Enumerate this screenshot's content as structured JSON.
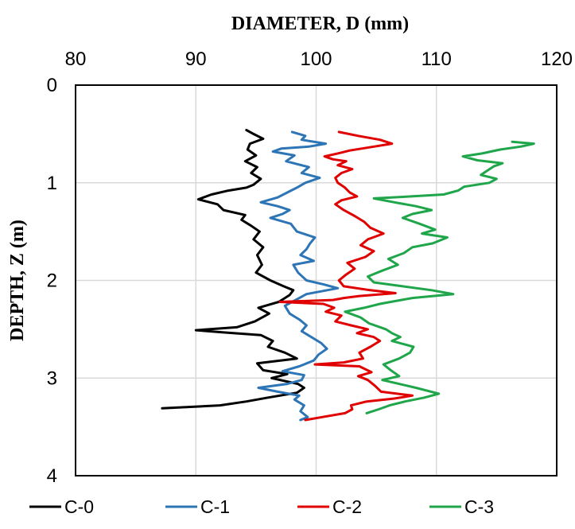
{
  "chart_data": {
    "type": "line",
    "xlabel": "DIAMETER, D (mm)",
    "ylabel": "DEPTH, Z (m)",
    "xlim": [
      80,
      120
    ],
    "ylim": [
      0,
      4
    ],
    "y_inverted": true,
    "x_axis_position": "top",
    "x_ticks": [
      "80",
      "90",
      "100",
      "110",
      "120"
    ],
    "y_ticks": [
      "0",
      "1",
      "2",
      "3",
      "4"
    ],
    "grid": true,
    "legend_position": "bottom",
    "series": [
      {
        "name": "C-0",
        "color": "#000000",
        "points": [
          [
            94.2,
            0.46
          ],
          [
            94.8,
            0.5
          ],
          [
            95.6,
            0.55
          ],
          [
            94.5,
            0.6
          ],
          [
            94.3,
            0.66
          ],
          [
            95.0,
            0.72
          ],
          [
            94.1,
            0.78
          ],
          [
            95.1,
            0.84
          ],
          [
            94.6,
            0.9
          ],
          [
            95.4,
            0.96
          ],
          [
            94.8,
            1.02
          ],
          [
            94.2,
            1.05
          ],
          [
            92.7,
            1.08
          ],
          [
            91.3,
            1.12
          ],
          [
            90.2,
            1.17
          ],
          [
            91.8,
            1.22
          ],
          [
            92.3,
            1.28
          ],
          [
            94.1,
            1.33
          ],
          [
            93.8,
            1.38
          ],
          [
            94.6,
            1.44
          ],
          [
            95.3,
            1.5
          ],
          [
            94.8,
            1.58
          ],
          [
            95.6,
            1.66
          ],
          [
            95.1,
            1.74
          ],
          [
            95.5,
            1.84
          ],
          [
            95.0,
            1.92
          ],
          [
            96.2,
            2.0
          ],
          [
            97.3,
            2.06
          ],
          [
            98.1,
            2.1
          ],
          [
            97.8,
            2.15
          ],
          [
            96.9,
            2.22
          ],
          [
            95.2,
            2.28
          ],
          [
            96.1,
            2.34
          ],
          [
            94.9,
            2.42
          ],
          [
            93.4,
            2.48
          ],
          [
            90.0,
            2.51
          ],
          [
            92.1,
            2.53
          ],
          [
            95.4,
            2.56
          ],
          [
            96.4,
            2.62
          ],
          [
            96.0,
            2.68
          ],
          [
            97.4,
            2.74
          ],
          [
            98.4,
            2.8
          ],
          [
            95.1,
            2.85
          ],
          [
            95.6,
            2.92
          ],
          [
            97.6,
            2.96
          ],
          [
            96.3,
            3.0
          ],
          [
            98.5,
            3.06
          ],
          [
            99.0,
            3.1
          ],
          [
            98.4,
            3.15
          ],
          [
            96.0,
            3.2
          ],
          [
            94.2,
            3.24
          ],
          [
            92.0,
            3.28
          ],
          [
            87.2,
            3.31
          ]
        ]
      },
      {
        "name": "C-1",
        "color": "#2E75B6",
        "points": [
          [
            98.0,
            0.48
          ],
          [
            99.1,
            0.52
          ],
          [
            98.8,
            0.56
          ],
          [
            100.8,
            0.6
          ],
          [
            99.4,
            0.63
          ],
          [
            97.1,
            0.65
          ],
          [
            96.4,
            0.68
          ],
          [
            98.2,
            0.72
          ],
          [
            97.5,
            0.78
          ],
          [
            99.4,
            0.84
          ],
          [
            98.8,
            0.9
          ],
          [
            100.3,
            0.95
          ],
          [
            99.1,
            1.0
          ],
          [
            98.4,
            1.05
          ],
          [
            97.6,
            1.1
          ],
          [
            96.8,
            1.15
          ],
          [
            95.4,
            1.2
          ],
          [
            96.8,
            1.24
          ],
          [
            97.8,
            1.28
          ],
          [
            97.2,
            1.32
          ],
          [
            96.2,
            1.36
          ],
          [
            97.9,
            1.42
          ],
          [
            98.4,
            1.5
          ],
          [
            99.9,
            1.56
          ],
          [
            99.5,
            1.62
          ],
          [
            99.2,
            1.68
          ],
          [
            98.7,
            1.74
          ],
          [
            99.8,
            1.8
          ],
          [
            98.1,
            1.84
          ],
          [
            98.5,
            1.92
          ],
          [
            99.2,
            2.0
          ],
          [
            100.6,
            2.04
          ],
          [
            101.8,
            2.08
          ],
          [
            99.2,
            2.14
          ],
          [
            98.3,
            2.2
          ],
          [
            97.4,
            2.26
          ],
          [
            97.8,
            2.34
          ],
          [
            98.6,
            2.4
          ],
          [
            99.2,
            2.46
          ],
          [
            98.8,
            2.52
          ],
          [
            99.6,
            2.58
          ],
          [
            100.4,
            2.64
          ],
          [
            100.9,
            2.7
          ],
          [
            100.2,
            2.76
          ],
          [
            99.8,
            2.82
          ],
          [
            98.6,
            2.88
          ],
          [
            97.2,
            2.93
          ],
          [
            99.0,
            2.97
          ],
          [
            98.8,
            3.02
          ],
          [
            97.6,
            3.06
          ],
          [
            95.2,
            3.1
          ],
          [
            96.8,
            3.14
          ],
          [
            98.6,
            3.18
          ],
          [
            98.2,
            3.22
          ],
          [
            99.0,
            3.28
          ],
          [
            98.7,
            3.34
          ],
          [
            99.3,
            3.4
          ],
          [
            98.7,
            3.43
          ]
        ]
      },
      {
        "name": "C-2",
        "color": "#E00000",
        "points": [
          [
            101.9,
            0.48
          ],
          [
            103.5,
            0.52
          ],
          [
            105.3,
            0.56
          ],
          [
            106.3,
            0.6
          ],
          [
            104.8,
            0.63
          ],
          [
            102.8,
            0.67
          ],
          [
            101.8,
            0.7
          ],
          [
            100.7,
            0.73
          ],
          [
            101.4,
            0.76
          ],
          [
            102.5,
            0.78
          ],
          [
            101.8,
            0.82
          ],
          [
            103.0,
            0.86
          ],
          [
            102.1,
            0.9
          ],
          [
            101.6,
            0.95
          ],
          [
            101.8,
            1.0
          ],
          [
            102.4,
            1.05
          ],
          [
            102.8,
            1.1
          ],
          [
            103.4,
            1.14
          ],
          [
            102.1,
            1.18
          ],
          [
            101.6,
            1.22
          ],
          [
            102.3,
            1.28
          ],
          [
            103.2,
            1.34
          ],
          [
            104.0,
            1.4
          ],
          [
            104.5,
            1.46
          ],
          [
            105.6,
            1.52
          ],
          [
            104.3,
            1.58
          ],
          [
            103.7,
            1.64
          ],
          [
            104.8,
            1.7
          ],
          [
            104.1,
            1.76
          ],
          [
            102.6,
            1.82
          ],
          [
            103.2,
            1.88
          ],
          [
            102.5,
            1.94
          ],
          [
            101.9,
            2.0
          ],
          [
            102.3,
            2.06
          ],
          [
            104.5,
            2.1
          ],
          [
            106.6,
            2.13
          ],
          [
            103.6,
            2.16
          ],
          [
            102.3,
            2.18
          ],
          [
            101.4,
            2.2
          ],
          [
            97.0,
            2.22
          ],
          [
            100.6,
            2.24
          ],
          [
            101.5,
            2.28
          ],
          [
            100.8,
            2.32
          ],
          [
            102.1,
            2.36
          ],
          [
            101.6,
            2.42
          ],
          [
            102.9,
            2.46
          ],
          [
            104.3,
            2.5
          ],
          [
            103.4,
            2.54
          ],
          [
            104.8,
            2.58
          ],
          [
            105.3,
            2.62
          ],
          [
            104.5,
            2.68
          ],
          [
            103.6,
            2.74
          ],
          [
            103.9,
            2.8
          ],
          [
            102.3,
            2.84
          ],
          [
            99.9,
            2.86
          ],
          [
            103.6,
            2.88
          ],
          [
            104.6,
            2.94
          ],
          [
            103.5,
            2.98
          ],
          [
            104.3,
            3.02
          ],
          [
            104.9,
            3.08
          ],
          [
            105.4,
            3.14
          ],
          [
            108.0,
            3.18
          ],
          [
            106.5,
            3.21
          ],
          [
            104.2,
            3.24
          ],
          [
            102.9,
            3.28
          ],
          [
            103.0,
            3.32
          ],
          [
            102.4,
            3.36
          ],
          [
            100.5,
            3.4
          ],
          [
            99.1,
            3.43
          ]
        ]
      },
      {
        "name": "C-3",
        "color": "#1FA64A",
        "points": [
          [
            116.3,
            0.58
          ],
          [
            118.1,
            0.6
          ],
          [
            117.0,
            0.63
          ],
          [
            115.3,
            0.66
          ],
          [
            113.8,
            0.7
          ],
          [
            112.2,
            0.73
          ],
          [
            113.4,
            0.77
          ],
          [
            115.5,
            0.8
          ],
          [
            114.8,
            0.83
          ],
          [
            114.3,
            0.87
          ],
          [
            113.7,
            0.92
          ],
          [
            115.0,
            0.96
          ],
          [
            114.4,
            1.0
          ],
          [
            112.3,
            1.04
          ],
          [
            111.8,
            1.08
          ],
          [
            110.6,
            1.12
          ],
          [
            107.9,
            1.14
          ],
          [
            104.8,
            1.16
          ],
          [
            106.5,
            1.2
          ],
          [
            108.3,
            1.24
          ],
          [
            109.6,
            1.28
          ],
          [
            108.0,
            1.32
          ],
          [
            107.2,
            1.36
          ],
          [
            108.6,
            1.42
          ],
          [
            109.9,
            1.48
          ],
          [
            108.8,
            1.52
          ],
          [
            110.9,
            1.56
          ],
          [
            109.7,
            1.62
          ],
          [
            108.0,
            1.66
          ],
          [
            107.3,
            1.72
          ],
          [
            106.0,
            1.78
          ],
          [
            106.8,
            1.84
          ],
          [
            105.5,
            1.9
          ],
          [
            104.3,
            1.96
          ],
          [
            104.8,
            2.02
          ],
          [
            107.2,
            2.06
          ],
          [
            109.6,
            2.1
          ],
          [
            111.4,
            2.14
          ],
          [
            108.0,
            2.18
          ],
          [
            105.3,
            2.24
          ],
          [
            104.0,
            2.28
          ],
          [
            102.4,
            2.32
          ],
          [
            103.7,
            2.38
          ],
          [
            104.4,
            2.44
          ],
          [
            105.8,
            2.5
          ],
          [
            106.3,
            2.54
          ],
          [
            107.0,
            2.58
          ],
          [
            106.3,
            2.62
          ],
          [
            108.1,
            2.68
          ],
          [
            107.8,
            2.74
          ],
          [
            106.9,
            2.8
          ],
          [
            105.6,
            2.86
          ],
          [
            106.2,
            2.92
          ],
          [
            106.9,
            2.98
          ],
          [
            105.5,
            3.02
          ],
          [
            106.9,
            3.06
          ],
          [
            108.3,
            3.1
          ],
          [
            110.2,
            3.16
          ],
          [
            109.0,
            3.2
          ],
          [
            107.4,
            3.24
          ],
          [
            106.1,
            3.28
          ],
          [
            105.2,
            3.32
          ],
          [
            104.2,
            3.36
          ]
        ]
      }
    ]
  }
}
